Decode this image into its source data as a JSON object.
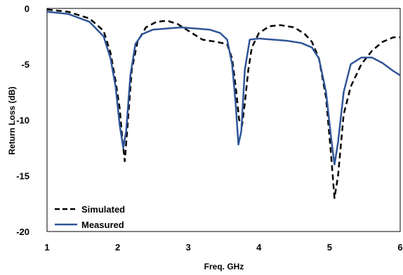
{
  "chart_data": {
    "type": "line",
    "title": "",
    "xlabel": "Freq. GHz",
    "ylabel": "Return Loss (dB)",
    "xlim": [
      1,
      6
    ],
    "ylim": [
      -20,
      0
    ],
    "x_ticks": [
      "1",
      "2",
      "3",
      "4",
      "5",
      "6"
    ],
    "y_ticks": [
      "0",
      "-5",
      "-10",
      "-15",
      "-20"
    ],
    "grid": false,
    "legend_position": "bottom-left",
    "series": [
      {
        "name": "Simulated",
        "style": "dashed",
        "color": "#000000",
        "points": [
          [
            1.0,
            -0.1
          ],
          [
            1.3,
            -0.3
          ],
          [
            1.6,
            -0.9
          ],
          [
            1.8,
            -2.0
          ],
          [
            1.9,
            -4.0
          ],
          [
            1.97,
            -6.5
          ],
          [
            2.03,
            -9.0
          ],
          [
            2.07,
            -12.0
          ],
          [
            2.1,
            -13.7
          ],
          [
            2.14,
            -10.5
          ],
          [
            2.2,
            -5.5
          ],
          [
            2.28,
            -3.0
          ],
          [
            2.4,
            -1.7
          ],
          [
            2.55,
            -1.2
          ],
          [
            2.7,
            -1.1
          ],
          [
            2.85,
            -1.4
          ],
          [
            3.0,
            -2.0
          ],
          [
            3.2,
            -2.8
          ],
          [
            3.4,
            -3.0
          ],
          [
            3.55,
            -3.2
          ],
          [
            3.62,
            -4.5
          ],
          [
            3.68,
            -7.5
          ],
          [
            3.72,
            -10.0
          ],
          [
            3.76,
            -10.5
          ],
          [
            3.8,
            -8.5
          ],
          [
            3.85,
            -5.5
          ],
          [
            3.9,
            -3.5
          ],
          [
            4.0,
            -2.2
          ],
          [
            4.15,
            -1.6
          ],
          [
            4.3,
            -1.5
          ],
          [
            4.5,
            -1.7
          ],
          [
            4.65,
            -2.3
          ],
          [
            4.75,
            -3.0
          ],
          [
            4.85,
            -4.5
          ],
          [
            4.95,
            -8.0
          ],
          [
            5.02,
            -13.0
          ],
          [
            5.07,
            -17.0
          ],
          [
            5.12,
            -15.0
          ],
          [
            5.2,
            -9.5
          ],
          [
            5.3,
            -7.0
          ],
          [
            5.45,
            -5.0
          ],
          [
            5.6,
            -3.8
          ],
          [
            5.75,
            -3.0
          ],
          [
            5.9,
            -2.6
          ],
          [
            6.0,
            -2.6
          ]
        ]
      },
      {
        "name": "Measured",
        "style": "solid",
        "color": "#2f5597",
        "points": [
          [
            1.0,
            -0.3
          ],
          [
            1.3,
            -0.5
          ],
          [
            1.6,
            -1.2
          ],
          [
            1.8,
            -2.5
          ],
          [
            1.9,
            -4.5
          ],
          [
            1.97,
            -7.0
          ],
          [
            2.03,
            -10.5
          ],
          [
            2.08,
            -12.5
          ],
          [
            2.12,
            -11.0
          ],
          [
            2.18,
            -6.0
          ],
          [
            2.25,
            -3.2
          ],
          [
            2.35,
            -2.3
          ],
          [
            2.5,
            -1.9
          ],
          [
            2.7,
            -1.8
          ],
          [
            2.9,
            -1.7
          ],
          [
            3.1,
            -1.8
          ],
          [
            3.3,
            -1.9
          ],
          [
            3.45,
            -2.2
          ],
          [
            3.55,
            -2.8
          ],
          [
            3.62,
            -5.0
          ],
          [
            3.67,
            -8.5
          ],
          [
            3.71,
            -12.2
          ],
          [
            3.75,
            -11.0
          ],
          [
            3.8,
            -5.5
          ],
          [
            3.87,
            -2.8
          ],
          [
            4.0,
            -2.7
          ],
          [
            4.2,
            -2.8
          ],
          [
            4.4,
            -2.9
          ],
          [
            4.6,
            -3.1
          ],
          [
            4.75,
            -3.5
          ],
          [
            4.85,
            -4.5
          ],
          [
            4.95,
            -7.5
          ],
          [
            5.02,
            -11.5
          ],
          [
            5.07,
            -14.0
          ],
          [
            5.12,
            -12.0
          ],
          [
            5.2,
            -7.5
          ],
          [
            5.3,
            -5.0
          ],
          [
            5.45,
            -4.4
          ],
          [
            5.6,
            -4.4
          ],
          [
            5.75,
            -4.9
          ],
          [
            5.9,
            -5.6
          ],
          [
            6.0,
            -6.0
          ]
        ]
      }
    ]
  }
}
